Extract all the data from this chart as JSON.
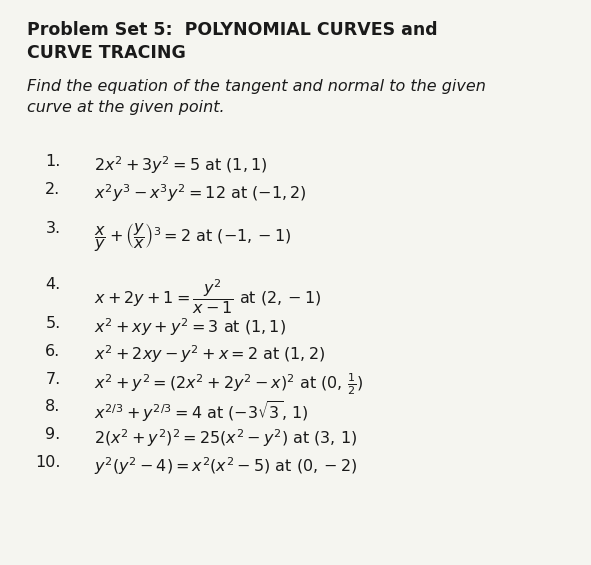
{
  "background_color": "#f5f5f0",
  "title_line1": "Problem Set 5:  POLYNOMIAL CURVES and",
  "title_line2": "CURVE TRACING",
  "instruction": "Find the equation of the tangent and normal to the given\ncurve at the given point.",
  "problems": [
    {
      "num": "1.",
      "math": "$2x^2+3y^2=5$ at $(1,1)$"
    },
    {
      "num": "2.",
      "math": "$x^2y^3-x^3y^2=12$ at $(-1,2)$"
    },
    {
      "num": "3.",
      "math": "$\\dfrac{x}{y}+\\left(\\dfrac{y}{x}\\right)^3=2$ at $(-1,-1)$"
    },
    {
      "num": "4.",
      "math": "$x+2y+1=\\dfrac{y^2}{x-1}$ at $(2,-1)$"
    },
    {
      "num": "5.",
      "math": "$x^2+xy+y^2=3$ at $(1,1)$"
    },
    {
      "num": "6.",
      "math": "$x^2+2xy-y^2+x=2$ at $(1,2)$"
    },
    {
      "num": "7.",
      "math": "$x^2+y^2=(2x^2+2y^2-x)^2$ at $(0,\\,\\frac{1}{2})$"
    },
    {
      "num": "8.",
      "math": "$x^{2/3}+y^{2/3}=4$ at $(-3\\sqrt{3},\\,1)$"
    },
    {
      "num": "9.",
      "math": "$2(x^2+y^2)^2=25(x^2-y^2)$ at $(3,\\,1)$"
    },
    {
      "num": "10.",
      "math": "$y^2(y^2-4)=x^2(x^2-5)$ at $(0,-2)$"
    }
  ],
  "text_color": "#1a1a1a",
  "title_fontsize": 12.5,
  "instruction_fontsize": 11.5,
  "problem_fontsize": 11.5
}
